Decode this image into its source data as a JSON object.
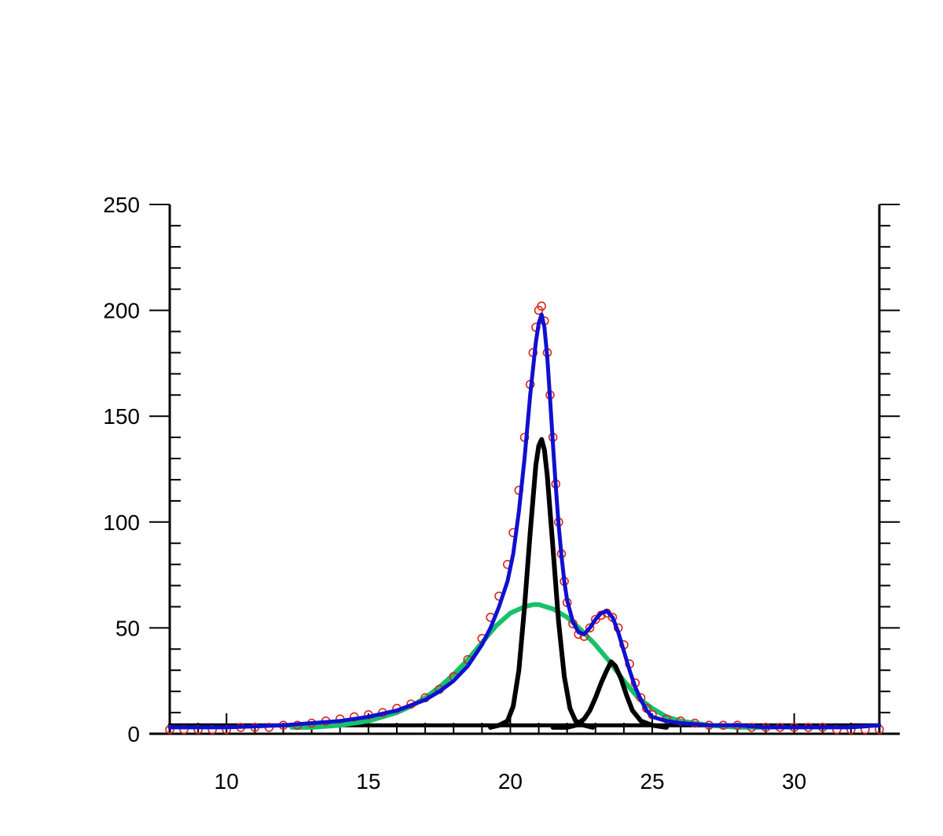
{
  "chart_data": {
    "type": "line",
    "title": "",
    "xlabel": "",
    "ylabel": "",
    "xlim": [
      8,
      33
    ],
    "ylim": [
      0,
      250
    ],
    "x_major_ticks": [
      10,
      15,
      20,
      25,
      30
    ],
    "x_tick_labels": [
      "10",
      "15",
      "20",
      "25",
      "30"
    ],
    "x_minor_step": 1,
    "y_major_ticks": [
      0,
      50,
      100,
      150,
      200,
      250
    ],
    "y_tick_labels": [
      "0",
      "50",
      "100",
      "150",
      "200",
      "250"
    ],
    "y_minor_step": 10,
    "grid": false,
    "legend": "none",
    "colors": {
      "data_points": "#d9261c",
      "fit": "#1010d0",
      "broad_component": "#17c06a",
      "narrow_components": "#000000",
      "baseline": "#000000",
      "axes": "#000000"
    },
    "series": [
      {
        "kind": "scatter",
        "style": "open-circle",
        "x": [
          8.0,
          8.5,
          9.0,
          9.5,
          10.0,
          10.5,
          11.0,
          11.5,
          12.0,
          12.5,
          13.0,
          13.5,
          14.0,
          14.5,
          15.0,
          15.5,
          16.0,
          16.5,
          17.0,
          17.5,
          18.0,
          18.5,
          19.0,
          19.3,
          19.6,
          19.9,
          20.1,
          20.3,
          20.5,
          20.7,
          20.8,
          20.9,
          21.0,
          21.1,
          21.2,
          21.3,
          21.4,
          21.5,
          21.6,
          21.7,
          21.8,
          21.9,
          22.0,
          22.2,
          22.4,
          22.6,
          22.8,
          23.0,
          23.2,
          23.4,
          23.6,
          23.8,
          24.0,
          24.2,
          24.4,
          24.6,
          24.8,
          25.0,
          25.5,
          26.0,
          26.5,
          27.0,
          27.5,
          28.0,
          28.5,
          29.0,
          29.5,
          30.0,
          30.5,
          31.0,
          31.5,
          32.0,
          32.5,
          33.0
        ],
        "y": [
          2,
          2,
          2,
          2,
          2,
          3,
          3,
          3,
          4,
          4,
          5,
          6,
          7,
          8,
          9,
          10,
          12,
          14,
          17,
          21,
          27,
          35,
          45,
          55,
          65,
          80,
          95,
          115,
          140,
          165,
          180,
          192,
          200,
          202,
          195,
          180,
          160,
          140,
          118,
          100,
          85,
          72,
          62,
          52,
          47,
          46,
          50,
          54,
          56,
          57,
          55,
          50,
          42,
          33,
          24,
          17,
          12,
          9,
          7,
          6,
          5,
          4,
          4,
          4,
          3,
          3,
          3,
          3,
          3,
          3,
          2,
          2,
          2,
          2
        ]
      },
      {
        "kind": "line",
        "style": "fit",
        "x": [
          8.0,
          10.0,
          12.0,
          13.0,
          14.0,
          15.0,
          16.0,
          17.0,
          17.5,
          18.0,
          18.5,
          19.0,
          19.3,
          19.6,
          19.9,
          20.1,
          20.3,
          20.5,
          20.7,
          20.9,
          21.0,
          21.1,
          21.2,
          21.3,
          21.4,
          21.5,
          21.6,
          21.7,
          21.8,
          21.9,
          22.0,
          22.2,
          22.4,
          22.6,
          22.8,
          23.0,
          23.2,
          23.4,
          23.6,
          23.8,
          24.0,
          24.2,
          24.4,
          24.6,
          24.8,
          25.0,
          25.5,
          26.0,
          27.0,
          28.0,
          29.0,
          30.0,
          31.0,
          32.0,
          33.0
        ],
        "y": [
          3,
          3,
          4,
          5,
          6,
          8,
          11,
          16,
          20,
          25,
          32,
          42,
          50,
          60,
          72,
          85,
          105,
          130,
          160,
          185,
          194,
          198,
          192,
          178,
          158,
          137,
          117,
          99,
          84,
          72,
          63,
          53,
          48,
          47,
          50,
          54,
          57,
          58,
          55,
          48,
          39,
          30,
          22,
          16,
          11,
          8,
          6,
          5,
          4,
          4,
          3,
          3,
          3,
          3,
          4
        ]
      },
      {
        "kind": "line",
        "style": "broad-component",
        "x": [
          12.3,
          13.0,
          14.0,
          15.0,
          15.5,
          16.0,
          16.5,
          17.0,
          17.5,
          18.0,
          18.5,
          19.0,
          19.5,
          20.0,
          20.5,
          20.8,
          21.0,
          21.5,
          22.0,
          22.5,
          23.0,
          23.5,
          24.0,
          24.5,
          25.0,
          25.5,
          26.0,
          26.5,
          27.0,
          28.0,
          29.0
        ],
        "y": [
          3,
          3,
          4,
          6,
          8,
          10,
          13,
          17,
          22,
          28,
          35,
          43,
          51,
          57,
          60,
          61,
          61,
          59,
          55,
          49,
          42,
          34,
          25,
          17,
          12,
          8,
          6,
          5,
          4,
          3,
          3
        ]
      },
      {
        "kind": "line",
        "style": "narrow-component",
        "x": [
          19.3,
          19.6,
          19.9,
          20.1,
          20.3,
          20.5,
          20.7,
          20.9,
          21.0,
          21.1,
          21.2,
          21.3,
          21.5,
          21.7,
          21.9,
          22.1,
          22.3,
          22.6,
          22.9
        ],
        "y": [
          3,
          4,
          6,
          13,
          30,
          60,
          95,
          127,
          136,
          139,
          134,
          122,
          88,
          53,
          27,
          12,
          6,
          4,
          3
        ]
      },
      {
        "kind": "line",
        "style": "narrow-component",
        "x": [
          21.5,
          22.0,
          22.3,
          22.6,
          22.8,
          23.0,
          23.2,
          23.4,
          23.55,
          23.7,
          23.9,
          24.1,
          24.3,
          24.6,
          25.0,
          25.5
        ],
        "y": [
          3,
          3,
          4,
          7,
          11,
          17,
          24,
          30,
          34,
          32,
          26,
          18,
          11,
          6,
          4,
          3
        ]
      },
      {
        "kind": "line",
        "style": "baseline",
        "x": [
          8.0,
          33.0
        ],
        "y": [
          4,
          4
        ]
      }
    ]
  }
}
